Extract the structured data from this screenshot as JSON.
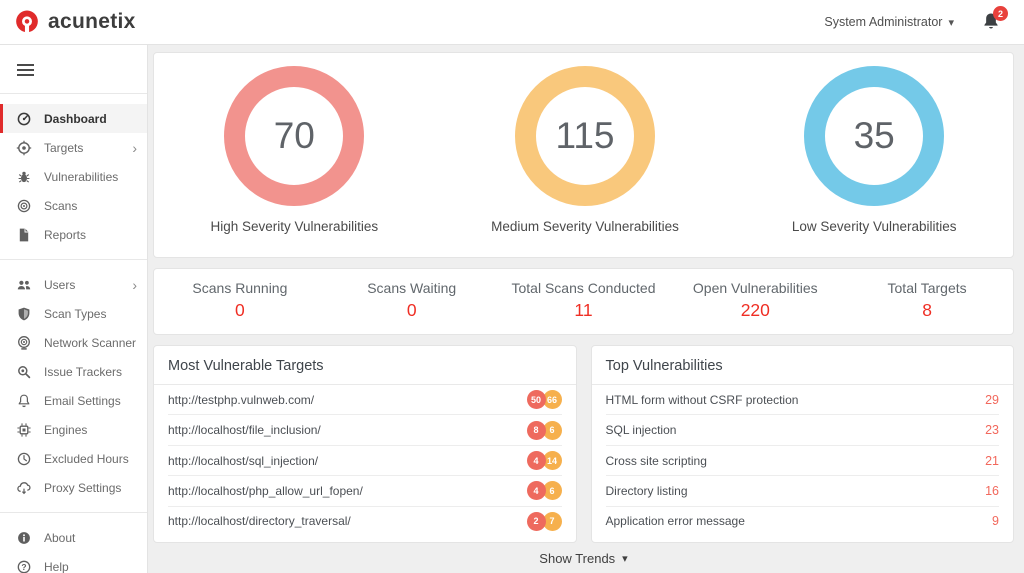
{
  "header": {
    "logo_text": "acunetix",
    "user_menu": "System Administrator",
    "notification_count": "2"
  },
  "sidebar": {
    "sections": [
      {
        "items": [
          {
            "label": "Dashboard",
            "icon": "gauge-icon",
            "active": true
          },
          {
            "label": "Targets",
            "icon": "target-icon",
            "has_submenu": true
          },
          {
            "label": "Vulnerabilities",
            "icon": "bug-icon"
          },
          {
            "label": "Scans",
            "icon": "radar-icon"
          },
          {
            "label": "Reports",
            "icon": "report-icon"
          }
        ]
      },
      {
        "items": [
          {
            "label": "Users",
            "icon": "users-icon",
            "has_submenu": true
          },
          {
            "label": "Scan Types",
            "icon": "shield-icon"
          },
          {
            "label": "Network Scanner",
            "icon": "network-scanner-icon"
          },
          {
            "label": "Issue Trackers",
            "icon": "issue-tracker-icon"
          },
          {
            "label": "Email Settings",
            "icon": "bell-outline-icon"
          },
          {
            "label": "Engines",
            "icon": "chip-icon"
          },
          {
            "label": "Excluded Hours",
            "icon": "clock-icon"
          },
          {
            "label": "Proxy Settings",
            "icon": "cloud-icon"
          }
        ]
      },
      {
        "items": [
          {
            "label": "About",
            "icon": "info-icon"
          },
          {
            "label": "Help",
            "icon": "help-icon"
          }
        ]
      }
    ]
  },
  "severity_donuts": [
    {
      "value": "70",
      "label": "High Severity Vulnerabilities"
    },
    {
      "value": "115",
      "label": "Medium Severity Vulnerabilities"
    },
    {
      "value": "35",
      "label": "Low Severity Vulnerabilities"
    }
  ],
  "stats": [
    {
      "label": "Scans Running",
      "value": "0"
    },
    {
      "label": "Scans Waiting",
      "value": "0"
    },
    {
      "label": "Total Scans Conducted",
      "value": "11"
    },
    {
      "label": "Open Vulnerabilities",
      "value": "220"
    },
    {
      "label": "Total Targets",
      "value": "8"
    }
  ],
  "most_vulnerable_targets": {
    "title": "Most Vulnerable Targets",
    "rows": [
      {
        "url": "http://testphp.vulnweb.com/",
        "high": "50",
        "medium": "66"
      },
      {
        "url": "http://localhost/file_inclusion/",
        "high": "8",
        "medium": "6"
      },
      {
        "url": "http://localhost/sql_injection/",
        "high": "4",
        "medium": "14"
      },
      {
        "url": "http://localhost/php_allow_url_fopen/",
        "high": "4",
        "medium": "6"
      },
      {
        "url": "http://localhost/directory_traversal/",
        "high": "2",
        "medium": "7"
      }
    ]
  },
  "top_vulnerabilities": {
    "title": "Top Vulnerabilities",
    "rows": [
      {
        "name": "HTML form without CSRF protection",
        "count": "29"
      },
      {
        "name": "SQL injection",
        "count": "23"
      },
      {
        "name": "Cross site scripting",
        "count": "21"
      },
      {
        "name": "Directory listing",
        "count": "16"
      },
      {
        "name": "Application error message",
        "count": "9"
      }
    ]
  },
  "footer": {
    "show_trends": "Show Trends"
  },
  "colors": {
    "brand_red": "#e02b2b",
    "active_indicator": "#e02b2b",
    "donut_high": "#f2938e",
    "donut_medium": "#f9c87c",
    "donut_low": "#74c9e8",
    "stat_value_red": "#ef2e24",
    "badge_high": "#ee6a5e",
    "badge_medium": "#f6b04d",
    "count_red": "#f2685c",
    "notification_badge": "#e8413c"
  }
}
